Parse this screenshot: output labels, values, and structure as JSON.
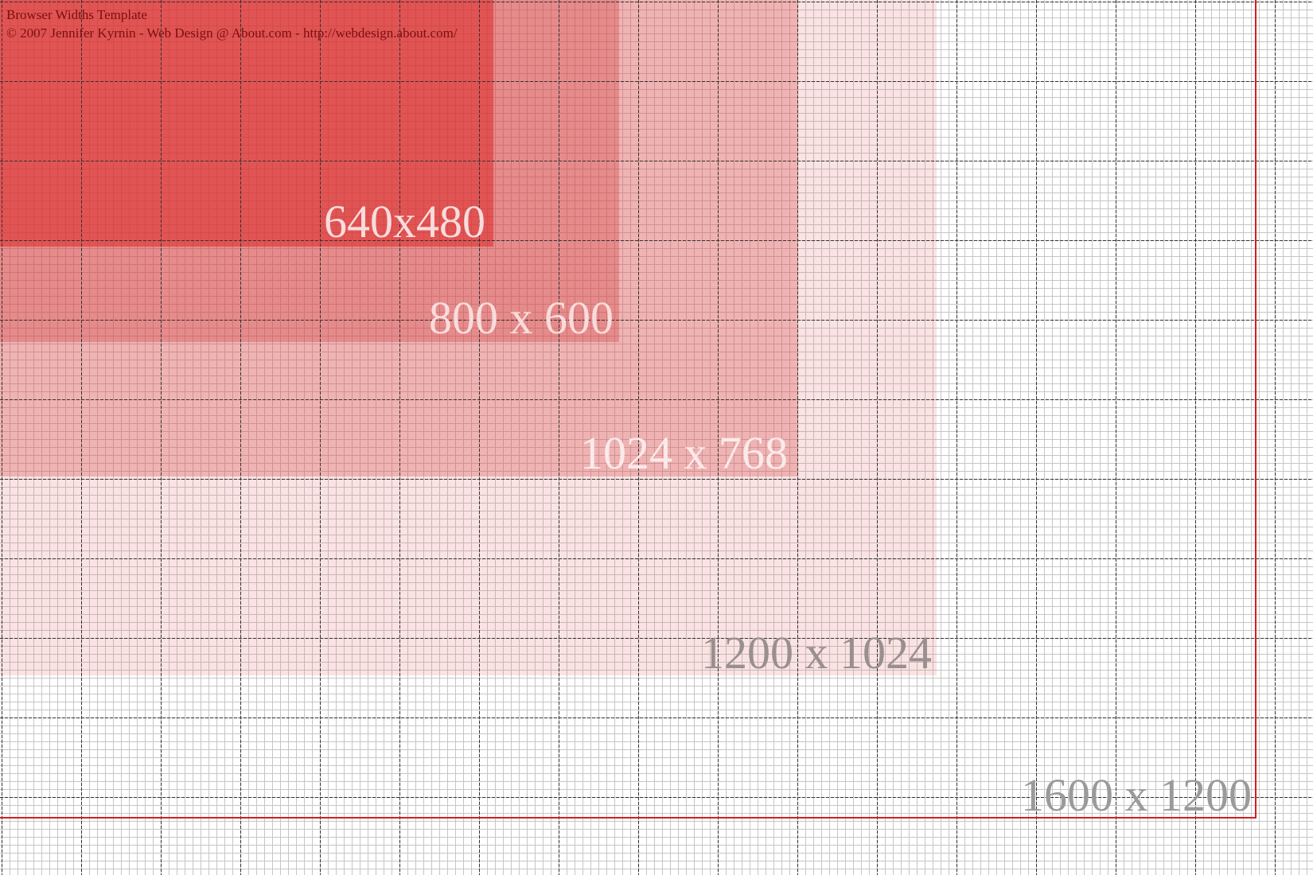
{
  "header": {
    "title": "Browser Widths Template",
    "copyright": "© 2007 Jennifer Kyrnin - Web Design @ About.com - http://webdesign.about.com/"
  },
  "regions": [
    {
      "label": "640x480",
      "color": "#e05555"
    },
    {
      "label": "800 x 600",
      "color": "#e48888"
    },
    {
      "label": "1024 x 768",
      "color": "#f1c0c0"
    },
    {
      "label": "1200 x 1024",
      "color": "#fae4e4"
    },
    {
      "label": "1600 x 1200",
      "color": "#d21f1f"
    }
  ],
  "colors": {
    "grid_fine": "#c6c6c6",
    "grid_major": "#333333",
    "frame": "#d21f1f",
    "credit_text": "#7a1010"
  }
}
